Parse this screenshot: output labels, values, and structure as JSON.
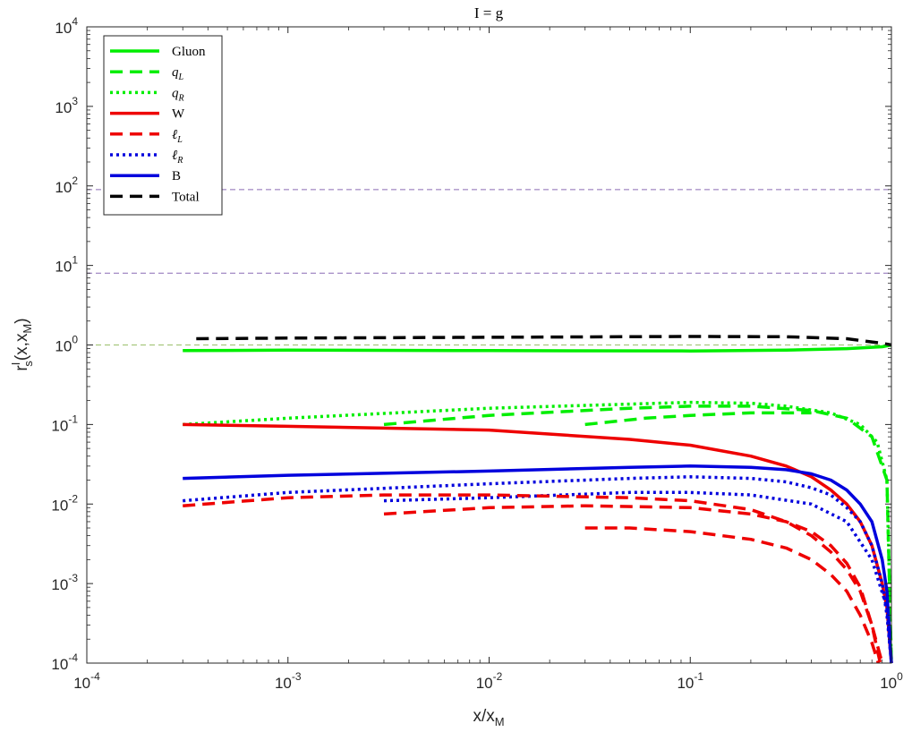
{
  "chart_data": {
    "type": "line",
    "title": "I = g",
    "xlabel": "x/x",
    "xlabel_sub": "M",
    "ylabel": "r",
    "ylabel_sup": "I",
    "ylabel_sub": "s",
    "ylabel_args": "(x,x",
    "ylabel_args_sub": "M",
    "ylabel_close": ")",
    "x_scale": "log",
    "y_scale": "log",
    "xlim": [
      0.0001,
      1
    ],
    "ylim": [
      0.0001,
      10000
    ],
    "tick_base": "10",
    "x_ticks": [
      {
        "value": 0.0001,
        "exp": "-4"
      },
      {
        "value": 0.001,
        "exp": "-3"
      },
      {
        "value": 0.01,
        "exp": "-2"
      },
      {
        "value": 0.1,
        "exp": "-1"
      },
      {
        "value": 1,
        "exp": "0"
      }
    ],
    "y_ticks": [
      {
        "value": 0.0001,
        "exp": "-4"
      },
      {
        "value": 0.001,
        "exp": "-3"
      },
      {
        "value": 0.01,
        "exp": "-2"
      },
      {
        "value": 0.1,
        "exp": "-1"
      },
      {
        "value": 1,
        "exp": "0"
      },
      {
        "value": 10,
        "exp": "1"
      },
      {
        "value": 100,
        "exp": "2"
      },
      {
        "value": 1000,
        "exp": "3"
      },
      {
        "value": 10000,
        "exp": "4"
      }
    ],
    "grid": false,
    "legend_position": "top-left",
    "reference_lines": [
      {
        "y": 90,
        "color": "#8a6bb5"
      },
      {
        "y": 8,
        "color": "#8a6bb5"
      },
      {
        "y": 1,
        "color": "#9bbf6a"
      }
    ],
    "legend": [
      {
        "label": "Gluon",
        "color": "#00ee00",
        "style": "solid"
      },
      {
        "label": "q",
        "sub": "L",
        "italic": true,
        "color": "#00ee00",
        "style": "dashed"
      },
      {
        "label": "q",
        "sub": "R",
        "italic": true,
        "color": "#00ee00",
        "style": "dotted"
      },
      {
        "label": "W",
        "color": "#ee0000",
        "style": "solid"
      },
      {
        "label": "ℓ",
        "sub": "L",
        "italic": true,
        "color": "#ee0000",
        "style": "dashed"
      },
      {
        "label": "ℓ",
        "sub": "R",
        "italic": true,
        "color": "#0000dd",
        "style": "dotted"
      },
      {
        "label": "B",
        "color": "#0000dd",
        "style": "solid"
      },
      {
        "label": "Total",
        "color": "#000000",
        "style": "dashed"
      }
    ],
    "series": [
      {
        "name": "Gluon",
        "color": "#00ee00",
        "style": "solid",
        "x": [
          0.0003,
          0.001,
          0.01,
          0.1,
          0.3,
          0.6,
          0.9,
          1.0
        ],
        "y": [
          0.85,
          0.86,
          0.85,
          0.84,
          0.86,
          0.9,
          0.95,
          1.0
        ]
      },
      {
        "name": "Total",
        "color": "#000000",
        "style": "dashed",
        "x": [
          0.00035,
          0.001,
          0.01,
          0.1,
          0.3,
          0.6,
          0.9,
          1.0
        ],
        "y": [
          1.2,
          1.22,
          1.25,
          1.28,
          1.27,
          1.2,
          1.05,
          1.0
        ]
      },
      {
        "name": "q_R",
        "color": "#00ee00",
        "style": "dotted",
        "x": [
          0.0003,
          0.001,
          0.01,
          0.1,
          0.2,
          0.3,
          0.5,
          0.7,
          0.85,
          0.95,
          1.0
        ],
        "y": [
          0.1,
          0.12,
          0.16,
          0.19,
          0.185,
          0.17,
          0.14,
          0.1,
          0.06,
          0.02,
          0.0001
        ]
      },
      {
        "name": "q_L",
        "color": "#00ee00",
        "style": "dashed",
        "x": [
          0.003,
          0.01,
          0.05,
          0.1,
          0.2,
          0.4,
          0.6,
          0.8,
          0.95,
          1.0
        ],
        "y": [
          0.1,
          0.13,
          0.16,
          0.17,
          0.17,
          0.15,
          0.12,
          0.07,
          0.02,
          0.0001
        ]
      },
      {
        "name": "q_L",
        "color": "#00ee00",
        "style": "dashed",
        "x": [
          0.03,
          0.06,
          0.1,
          0.2,
          0.4
        ],
        "y": [
          0.1,
          0.12,
          0.13,
          0.14,
          0.14
        ]
      },
      {
        "name": "W",
        "color": "#ee0000",
        "style": "solid",
        "x": [
          0.0003,
          0.001,
          0.01,
          0.05,
          0.1,
          0.2,
          0.3,
          0.4,
          0.5,
          0.6,
          0.7,
          0.8,
          0.9,
          0.95,
          1.0
        ],
        "y": [
          0.1,
          0.095,
          0.085,
          0.065,
          0.055,
          0.04,
          0.03,
          0.022,
          0.015,
          0.01,
          0.006,
          0.003,
          0.001,
          0.0005,
          0.0001
        ]
      },
      {
        "name": "B",
        "color": "#0000dd",
        "style": "solid",
        "x": [
          0.0003,
          0.001,
          0.01,
          0.05,
          0.1,
          0.2,
          0.3,
          0.4,
          0.5,
          0.6,
          0.7,
          0.8,
          0.9,
          0.95,
          1.0
        ],
        "y": [
          0.021,
          0.023,
          0.026,
          0.029,
          0.03,
          0.029,
          0.027,
          0.024,
          0.02,
          0.015,
          0.01,
          0.006,
          0.002,
          0.0008,
          0.0001
        ]
      },
      {
        "name": "ℓ_R",
        "color": "#0000dd",
        "style": "dotted",
        "x": [
          0.0003,
          0.001,
          0.01,
          0.05,
          0.1,
          0.2,
          0.3,
          0.4,
          0.5,
          0.6,
          0.7,
          0.8,
          0.9,
          0.95,
          1.0
        ],
        "y": [
          0.011,
          0.014,
          0.018,
          0.021,
          0.022,
          0.021,
          0.019,
          0.016,
          0.013,
          0.009,
          0.006,
          0.003,
          0.001,
          0.0004,
          0.0001
        ]
      },
      {
        "name": "ℓ_R",
        "color": "#0000dd",
        "style": "dotted",
        "x": [
          0.003,
          0.01,
          0.05,
          0.1,
          0.2,
          0.4,
          0.6,
          0.8,
          0.95,
          1.0
        ],
        "y": [
          0.011,
          0.012,
          0.014,
          0.014,
          0.013,
          0.01,
          0.006,
          0.002,
          0.0005,
          0.0001
        ]
      },
      {
        "name": "ℓ_L",
        "color": "#ee0000",
        "style": "dashed",
        "x": [
          0.0003,
          0.001,
          0.003,
          0.01,
          0.05,
          0.1,
          0.2,
          0.3,
          0.4,
          0.5,
          0.6,
          0.7,
          0.8,
          0.9
        ],
        "y": [
          0.0095,
          0.012,
          0.013,
          0.013,
          0.012,
          0.011,
          0.0085,
          0.006,
          0.004,
          0.0025,
          0.0015,
          0.0008,
          0.0003,
          0.0001
        ]
      },
      {
        "name": "ℓ_L",
        "color": "#ee0000",
        "style": "dashed",
        "x": [
          0.003,
          0.01,
          0.03,
          0.1,
          0.2,
          0.3,
          0.4,
          0.5,
          0.6,
          0.7,
          0.8,
          0.88
        ],
        "y": [
          0.0075,
          0.009,
          0.0095,
          0.009,
          0.0075,
          0.006,
          0.0045,
          0.003,
          0.0018,
          0.0009,
          0.0003,
          0.0001
        ]
      },
      {
        "name": "ℓ_L",
        "color": "#ee0000",
        "style": "dashed",
        "x": [
          0.03,
          0.05,
          0.1,
          0.2,
          0.3,
          0.4,
          0.5,
          0.6,
          0.7,
          0.8,
          0.86
        ],
        "y": [
          0.005,
          0.005,
          0.0045,
          0.0036,
          0.0028,
          0.002,
          0.0013,
          0.0008,
          0.0004,
          0.00018,
          0.0001
        ]
      }
    ]
  }
}
